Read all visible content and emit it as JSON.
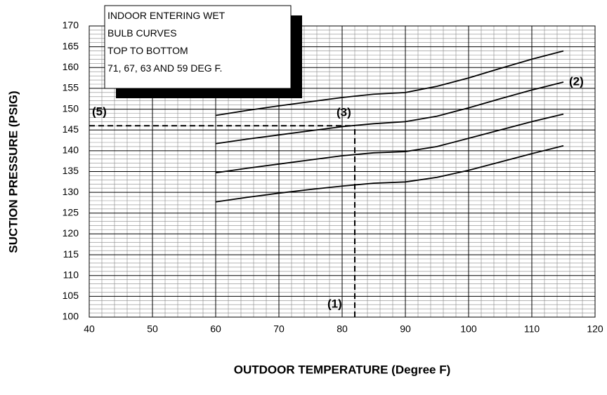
{
  "chart_data": {
    "type": "line",
    "xlabel": "OUTDOOR TEMPERATURE (Degree F)",
    "ylabel": "SUCTION PRESSURE (PSIG)",
    "x": [
      60,
      65,
      70,
      75,
      80,
      85,
      90,
      95,
      100,
      105,
      110,
      115
    ],
    "series": [
      {
        "color": "#000000",
        "values": [
          148.5,
          149.7,
          150.8,
          151.8,
          152.8,
          153.6,
          154.0,
          155.5,
          157.5,
          159.8,
          162.0,
          164.0
        ]
      },
      {
        "color": "#000000",
        "values": [
          141.7,
          142.8,
          143.8,
          144.8,
          145.8,
          146.5,
          147.0,
          148.3,
          150.3,
          152.5,
          154.6,
          156.5
        ]
      },
      {
        "color": "#000000",
        "values": [
          134.7,
          135.8,
          136.8,
          137.8,
          138.8,
          139.5,
          139.8,
          141.0,
          143.0,
          145.0,
          147.0,
          148.8
        ]
      },
      {
        "color": "#000000",
        "values": [
          127.7,
          128.8,
          129.8,
          130.7,
          131.5,
          132.2,
          132.5,
          133.6,
          135.3,
          137.3,
          139.3,
          141.2
        ]
      }
    ],
    "xlim": [
      40,
      120
    ],
    "xticks": [
      40,
      50,
      60,
      70,
      80,
      90,
      100,
      110,
      120
    ],
    "ylim": [
      100,
      170
    ],
    "yticks": [
      100,
      105,
      110,
      115,
      120,
      125,
      130,
      135,
      140,
      145,
      150,
      155,
      160,
      165,
      170
    ],
    "grid": true,
    "reference_x": 82,
    "reference_y": 146,
    "legend_text": [
      "INDOOR ENTERING WET",
      "BULB CURVES",
      "TOP TO BOTTOM",
      "71, 67, 63 AND 59 DEG F."
    ],
    "annotations": [
      "(5)",
      "(3)",
      "(2)",
      "(1)"
    ]
  }
}
